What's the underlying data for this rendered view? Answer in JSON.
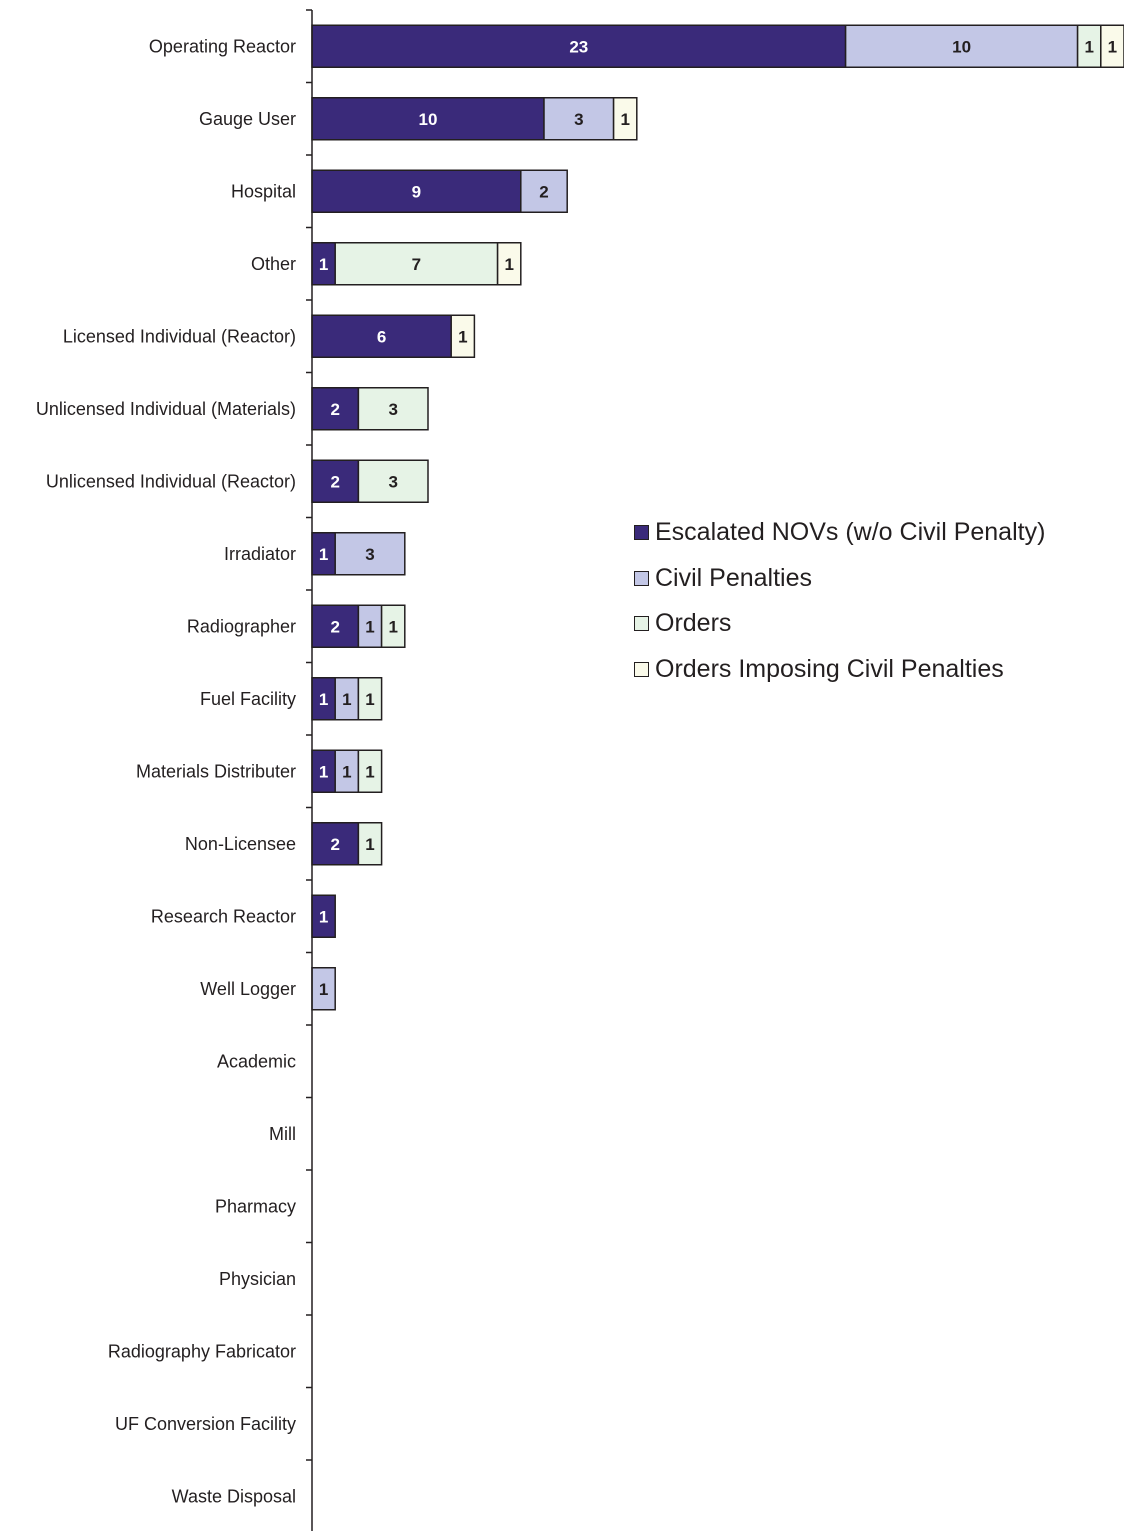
{
  "chart_data": {
    "type": "bar",
    "orientation": "horizontal",
    "stacked": true,
    "categories": [
      "Operating Reactor",
      "Gauge User",
      "Hospital",
      "Other",
      "Licensed Individual (Reactor)",
      "Unlicensed Individual (Materials)",
      "Unlicensed Individual (Reactor)",
      "Irradiator",
      "Radiographer",
      "Fuel Facility",
      "Materials Distributer",
      "Non-Licensee",
      "Research Reactor",
      "Well Logger",
      "Academic",
      "Mill",
      "Pharmacy",
      "Physician",
      "Radiography Fabricator",
      "UF Conversion Facility",
      "Waste Disposal"
    ],
    "series": [
      {
        "name": "Escalated NOVs (w/o Civil Penalty)",
        "color": "#3a2a7a",
        "label_color": "#ffffff",
        "values": [
          23,
          10,
          9,
          1,
          6,
          2,
          2,
          1,
          2,
          1,
          1,
          2,
          1,
          0,
          0,
          0,
          0,
          0,
          0,
          0,
          0
        ]
      },
      {
        "name": "Civil Penalties",
        "color": "#c3c7e6",
        "label_color": "#231f20",
        "values": [
          10,
          3,
          2,
          0,
          0,
          0,
          0,
          3,
          1,
          1,
          1,
          0,
          0,
          1,
          0,
          0,
          0,
          0,
          0,
          0,
          0
        ]
      },
      {
        "name": "Orders",
        "color": "#e6f3e6",
        "label_color": "#231f20",
        "values": [
          1,
          0,
          0,
          7,
          0,
          3,
          3,
          0,
          1,
          1,
          1,
          1,
          0,
          0,
          0,
          0,
          0,
          0,
          0,
          0,
          0
        ]
      },
      {
        "name": "Orders Imposing Civil Penalties",
        "color": "#fafaea",
        "label_color": "#231f20",
        "values": [
          1,
          1,
          0,
          1,
          1,
          0,
          0,
          0,
          0,
          0,
          0,
          0,
          0,
          0,
          0,
          0,
          0,
          0,
          0,
          0,
          0
        ]
      }
    ],
    "xlim": [
      0,
      35
    ],
    "grid": false,
    "legend_position": "right-middle",
    "title": "",
    "xlabel": "",
    "ylabel": ""
  }
}
